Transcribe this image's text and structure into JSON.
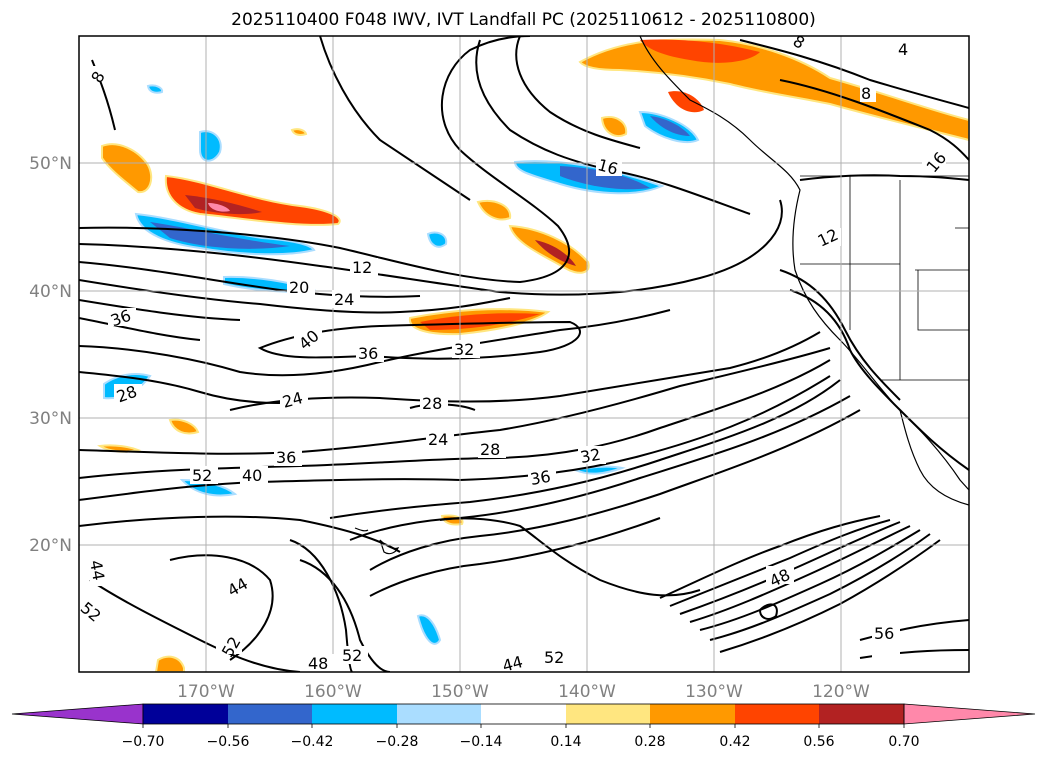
{
  "title": "2025110400 F048 IWV, IVT Landfall PC (2025110612 - 2025110800)",
  "colors": {
    "fills": [
      "#9933cc",
      "#000099",
      "#3366cc",
      "#00bbff",
      "#aaddff",
      "#ffffff",
      "#ffe680",
      "#ff9900",
      "#ff4400",
      "#b22222",
      "#ff88aa"
    ]
  },
  "axes": {
    "lat_labels": [
      "50°N",
      "40°N",
      "30°N",
      "20°N"
    ],
    "lon_labels": [
      "170°W",
      "160°W",
      "150°W",
      "140°W",
      "130°W",
      "120°W"
    ]
  },
  "colorbar": {
    "tick_labels": [
      "−0.70",
      "−0.56",
      "−0.42",
      "−0.28",
      "−0.14",
      "0.14",
      "0.28",
      "0.42",
      "0.56",
      "0.70"
    ]
  },
  "contour_labels": [
    "8",
    "4",
    "8",
    "16",
    "16",
    "8",
    "12",
    "12",
    "20",
    "24",
    "36",
    "40",
    "36",
    "32",
    "28",
    "24",
    "28",
    "24",
    "28",
    "32",
    "36",
    "36",
    "40",
    "52",
    "44",
    "44",
    "52",
    "52",
    "48",
    "52",
    "44",
    "52",
    "48",
    "56"
  ]
}
